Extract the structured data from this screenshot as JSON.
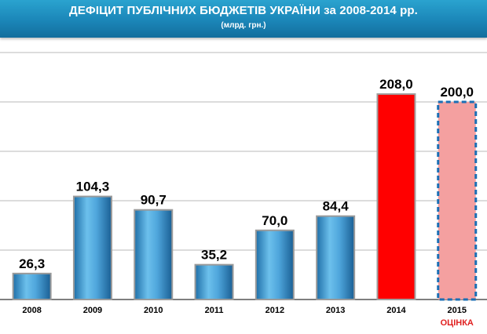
{
  "header": {
    "title": "ДЕФІЦИТ ПУБЛІЧНИХ БЮДЖЕТІВ УКРАЇНИ за 2008-2014 рр.",
    "subtitle": "(млрд. грн.)"
  },
  "chart_data": {
    "type": "bar",
    "categories": [
      "2008",
      "2009",
      "2010",
      "2011",
      "2012",
      "2013",
      "2014",
      "2015"
    ],
    "values": [
      26.3,
      104.3,
      90.7,
      35.2,
      70.0,
      84.4,
      208.0,
      200.0
    ],
    "value_labels": [
      "26,3",
      "104,3",
      "90,7",
      "35,2",
      "70,0",
      "84,4",
      "208,0",
      "200,0"
    ],
    "bar_colors": [
      "#4a9fd3",
      "#4a9fd3",
      "#4a9fd3",
      "#4a9fd3",
      "#4a9fd3",
      "#4a9fd3",
      "#ff0000",
      "#f4a0a0"
    ],
    "dashed_outline": [
      false,
      false,
      false,
      false,
      false,
      false,
      false,
      true
    ],
    "category_notes": [
      "",
      "",
      "",
      "",
      "",
      "",
      "",
      "ОЦІНКА"
    ],
    "ylim": [
      0,
      250
    ],
    "grid": true,
    "xlabel": "",
    "ylabel": "",
    "colors": {
      "header": "#1b86b8",
      "bar": "#4a9fd3",
      "highlight": "#ff0000",
      "estimate": "#f4a0a0",
      "estimate_border": "#1a6fb5",
      "note": "#e02020"
    }
  }
}
